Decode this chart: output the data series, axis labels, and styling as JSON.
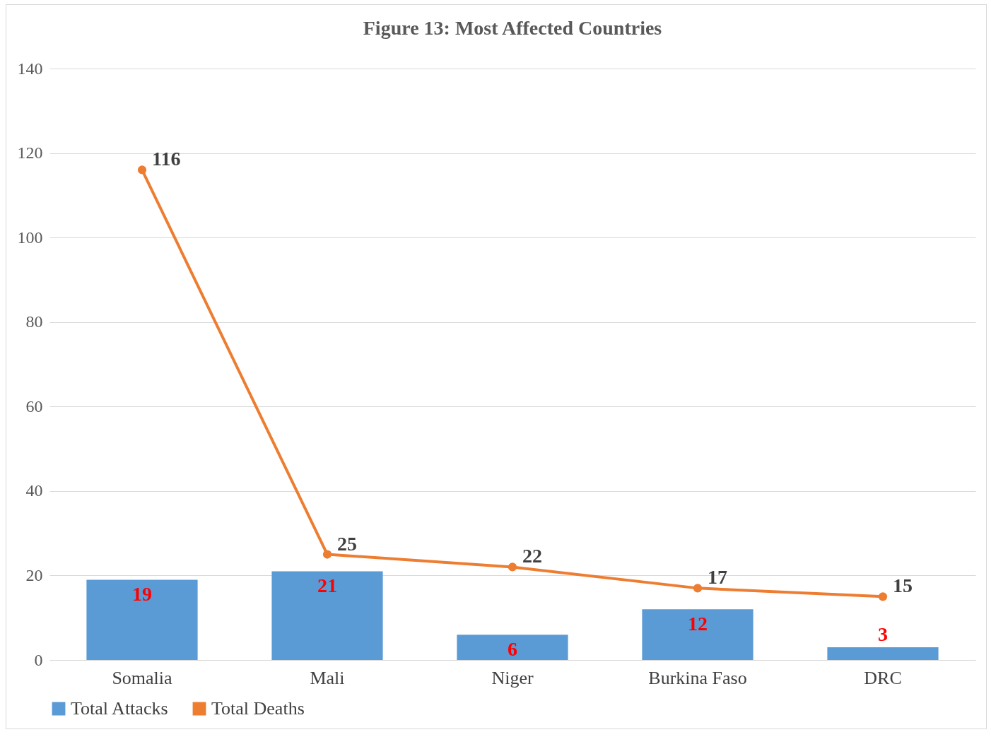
{
  "chart_data": {
    "type": "bar",
    "title": "Figure 13: Most Affected Countries",
    "categories": [
      "Somalia",
      "Mali",
      "Niger",
      "Burkina Faso",
      "DRC"
    ],
    "series": [
      {
        "name": "Total Attacks",
        "color": "#5b9bd5",
        "values": [
          19,
          21,
          6,
          12,
          3
        ]
      },
      {
        "name": "Total Deaths",
        "type": "line",
        "color": "#ed7d31",
        "values": [
          116,
          25,
          22,
          17,
          15
        ]
      }
    ],
    "ylim": [
      0,
      140
    ],
    "yticks": [
      0,
      20,
      40,
      60,
      80,
      100,
      120,
      140
    ],
    "grid": "y",
    "legend": "bottom",
    "marker": "circle",
    "data_labels": true
  }
}
